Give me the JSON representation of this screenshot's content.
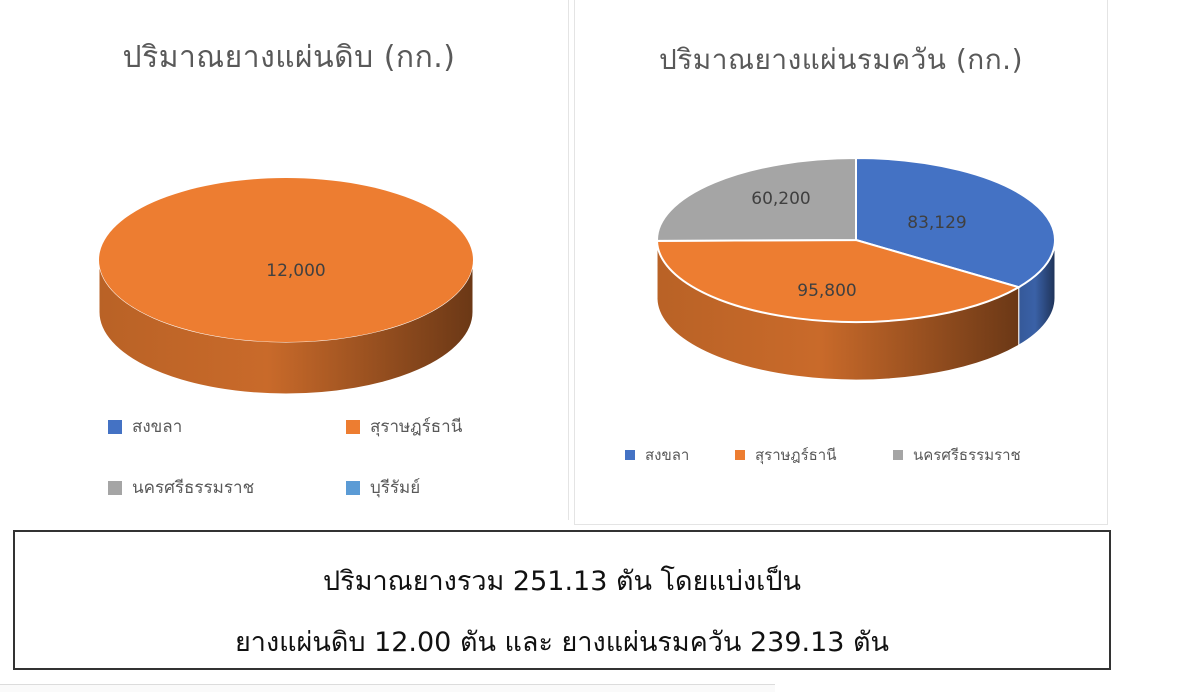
{
  "colors": {
    "songkhla": "#4472C4",
    "surat_thani": "#ED7D31",
    "nakhon_si_thammarat": "#A5A5A5",
    "buriram": "#5B9BD5"
  },
  "chart_data": [
    {
      "type": "pie",
      "style": "3d",
      "title": "ปริมาณยางแผ่นดิบ (กก.)",
      "categories": [
        "สงขลา",
        "สุราษฎร์ธานี",
        "นครศรีธรรมราช",
        "บุรีรัมย์"
      ],
      "values": [
        0,
        12000,
        0,
        0
      ],
      "data_labels": [
        "12,000"
      ],
      "legend_position": "bottom"
    },
    {
      "type": "pie",
      "style": "3d",
      "title": "ปริมาณยางแผ่นรมควัน (กก.)",
      "categories": [
        "สงขลา",
        "สุราษฎร์ธานี",
        "นครศรีธรรมราช"
      ],
      "values": [
        83129,
        95800,
        60200
      ],
      "data_labels": [
        "83,129",
        "95,800",
        "60,200"
      ],
      "legend_position": "bottom"
    }
  ],
  "summary": {
    "line1": "ปริมาณยางรวม 251.13 ตัน โดยแบ่งเป็น",
    "line2": "ยางแผ่นดิบ 12.00 ตัน และ ยางแผ่นรมควัน 239.13 ตัน"
  }
}
